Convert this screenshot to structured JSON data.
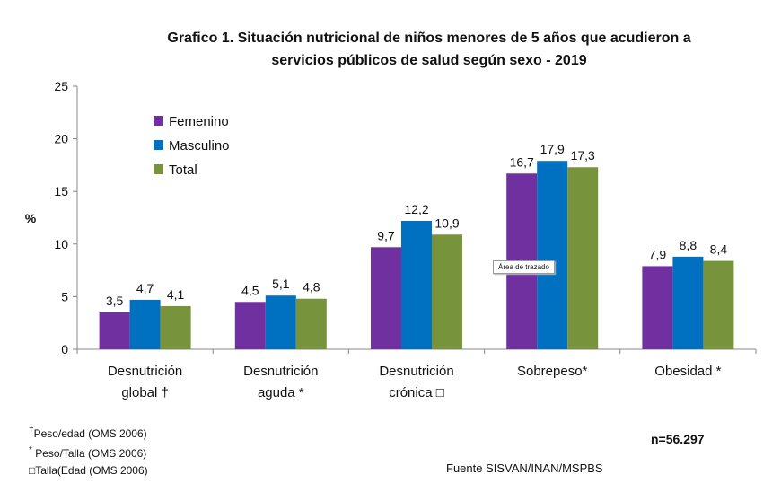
{
  "chart_data": {
    "type": "bar",
    "title_line1": "Grafico 1. Situación nutricional de niños menores de 5 años que acudieron a",
    "title_line2": "servicios públicos de salud según sexo - 2019",
    "ylabel": "%",
    "ylim": [
      0,
      25
    ],
    "yticks": [
      0,
      5,
      10,
      15,
      20,
      25
    ],
    "categories": [
      [
        "Desnutrición",
        "global  †"
      ],
      [
        "Desnutrición",
        "aguda *"
      ],
      [
        "Desnutrición",
        "crónica  □"
      ],
      [
        "Sobrepeso*"
      ],
      [
        "Obesidad *"
      ]
    ],
    "series": [
      {
        "name": "Femenino",
        "color": "#7030a0",
        "values": [
          3.5,
          4.5,
          9.7,
          16.7,
          7.9
        ],
        "labels": [
          "3,5",
          "4,5",
          "9,7",
          "16,7",
          "7,9"
        ]
      },
      {
        "name": "Masculino",
        "color": "#0070c0",
        "values": [
          4.7,
          5.1,
          12.2,
          17.9,
          8.8
        ],
        "labels": [
          "4,7",
          "5,1",
          "12,2",
          "17,9",
          "8,8"
        ]
      },
      {
        "name": "Total",
        "color": "#77933c",
        "values": [
          4.1,
          4.8,
          10.9,
          17.3,
          8.4
        ],
        "labels": [
          "4,1",
          "4,8",
          "10,9",
          "17,3",
          "8,4"
        ]
      }
    ],
    "legend_position": "top-left",
    "grid": false
  },
  "notes": {
    "n1_sym": "†",
    "n1_text": "Peso/edad (OMS 2006)",
    "n2_sym": "*",
    "n2_text": "Peso/Talla (OMS 2006)",
    "n3_sym": "□",
    "n3_text": "Talla(Edad (OMS 2006)"
  },
  "sample": "n=56.297",
  "source": "Fuente SISVAN/INAN/MSPBS",
  "tooltip": "Área de trazado"
}
